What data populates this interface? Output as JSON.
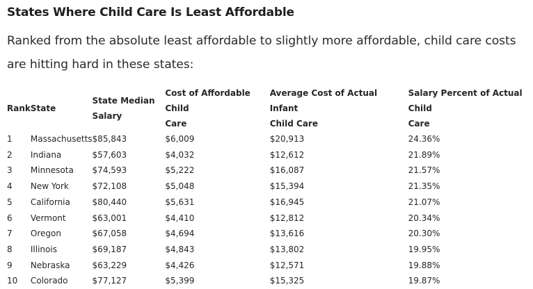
{
  "article": {
    "title": "States Where Child Care Is Least Affordable",
    "intro": "Ranked from the absolute least affordable to slightly more affordable, child care costs are hitting hard in these states:"
  },
  "table": {
    "headers": {
      "rank": "Rank",
      "state": "State",
      "median_line1": "State Median",
      "median_line2": "Salary",
      "afford_line1": "Cost of Affordable Child",
      "afford_line2": "Care",
      "actual_line1": "Average Cost of Actual Infant",
      "actual_line2": "Child Care",
      "pct_line1": "Salary Percent of Actual Child",
      "pct_line2": "Care"
    },
    "rows": [
      {
        "rank": "1",
        "state": "Massachusetts",
        "median": "$85,843",
        "afford": "$6,009",
        "actual": "$20,913",
        "pct": "24.36%"
      },
      {
        "rank": "2",
        "state": "Indiana",
        "median": "$57,603",
        "afford": "$4,032",
        "actual": "$12,612",
        "pct": "21.89%"
      },
      {
        "rank": "3",
        "state": "Minnesota",
        "median": "$74,593",
        "afford": "$5,222",
        "actual": "$16,087",
        "pct": "21.57%"
      },
      {
        "rank": "4",
        "state": "New York",
        "median": "$72,108",
        "afford": "$5,048",
        "actual": "$15,394",
        "pct": "21.35%"
      },
      {
        "rank": "5",
        "state": "California",
        "median": "$80,440",
        "afford": "$5,631",
        "actual": "$16,945",
        "pct": "21.07%"
      },
      {
        "rank": "6",
        "state": "Vermont",
        "median": "$63,001",
        "afford": "$4,410",
        "actual": "$12,812",
        "pct": "20.34%"
      },
      {
        "rank": "7",
        "state": "Oregon",
        "median": "$67,058",
        "afford": "$4,694",
        "actual": "$13,616",
        "pct": "20.30%"
      },
      {
        "rank": "8",
        "state": "Illinois",
        "median": "$69,187",
        "afford": "$4,843",
        "actual": "$13,802",
        "pct": "19.95%"
      },
      {
        "rank": "9",
        "state": "Nebraska",
        "median": "$63,229",
        "afford": "$4,426",
        "actual": "$12,571",
        "pct": "19.88%"
      },
      {
        "rank": "10",
        "state": "Colorado",
        "median": "$77,127",
        "afford": "$5,399",
        "actual": "$15,325",
        "pct": "19.87%"
      }
    ]
  }
}
